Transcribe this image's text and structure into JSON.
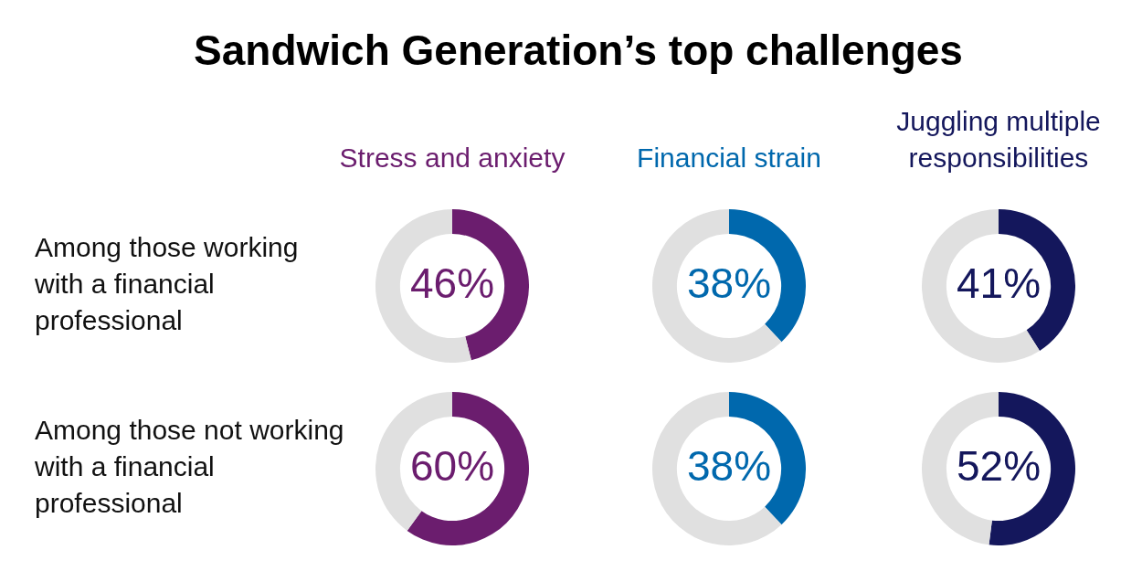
{
  "chart_data": [
    {
      "type": "other",
      "title": "Sandwich Generation’s top challenges"
    },
    {
      "type": "donut",
      "title": "Stress and anxiety",
      "ylabel": "Among those working with a financial professional",
      "categories": [
        null,
        null
      ],
      "values": [
        46,
        54
      ],
      "colors": [
        "#6b1d6e",
        "#e0e0e0"
      ],
      "value_labels": [
        "46%",
        null
      ]
    },
    {
      "type": "donut",
      "title": "Financial strain",
      "categories": [
        null,
        null
      ],
      "values": [
        38,
        62
      ],
      "colors": [
        "#0068ad",
        "#e0e0e0"
      ],
      "value_labels": [
        "38%",
        null
      ]
    },
    {
      "type": "donut",
      "title": "Juggling multiple responsibilities",
      "categories": [
        null,
        null
      ],
      "values": [
        41,
        59
      ],
      "colors": [
        "#14175c",
        "#e0e0e0"
      ],
      "value_labels": [
        "41%",
        null
      ]
    },
    {
      "type": "donut",
      "ylabel": "Among those not working with a financial professional",
      "categories": [
        null,
        null
      ],
      "values": [
        60,
        40
      ],
      "colors": [
        "#6b1d6e",
        "#e0e0e0"
      ],
      "value_labels": [
        "60%",
        null
      ]
    },
    {
      "type": "donut",
      "categories": [
        null,
        null
      ],
      "values": [
        38,
        62
      ],
      "colors": [
        "#0068ad",
        "#e0e0e0"
      ],
      "value_labels": [
        "38%",
        null
      ]
    },
    {
      "type": "donut",
      "categories": [
        null,
        null
      ],
      "values": [
        52,
        48
      ],
      "colors": [
        "#14175c",
        "#e0e0e0"
      ],
      "value_labels": [
        "52%",
        null
      ]
    }
  ]
}
